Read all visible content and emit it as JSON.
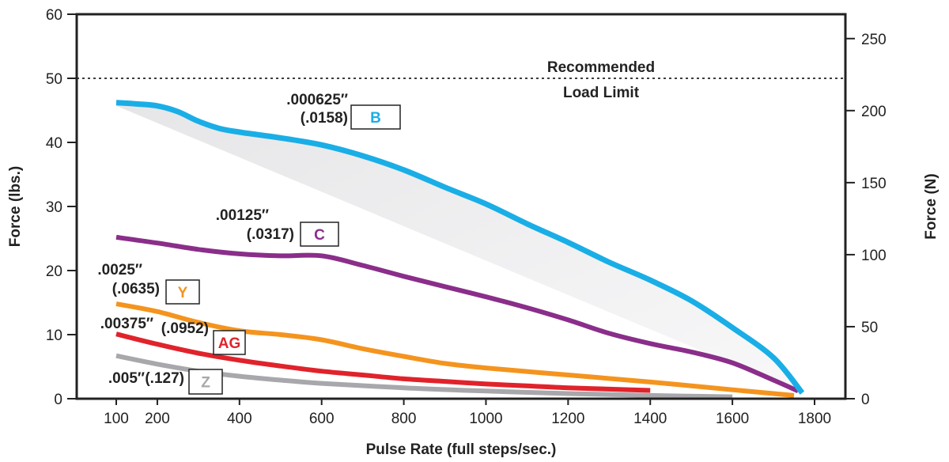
{
  "chart_data": {
    "type": "line",
    "xlabel": "Pulse Rate (full steps/sec.)",
    "ylabel": "Force (lbs.)",
    "y2label": "Force (N)",
    "xlim": [
      0,
      1850
    ],
    "ylim": [
      0,
      60
    ],
    "y2lim": [
      0,
      266.9
    ],
    "xticks": [
      100,
      200,
      400,
      600,
      800,
      1000,
      1200,
      1400,
      1600,
      1800
    ],
    "yticks": [
      0,
      10,
      20,
      30,
      40,
      50,
      60
    ],
    "y2ticks": [
      0,
      50,
      100,
      150,
      200,
      250
    ],
    "grid": false,
    "reference_line": {
      "y": 50,
      "label_line1": "Recommended",
      "label_line2": "Load Limit"
    },
    "series": [
      {
        "key": "B",
        "color": "#1aaee6",
        "label_in": ".000625″",
        "label_mm": "(.0158)",
        "x": [
          100,
          150,
          200,
          250,
          300,
          350,
          400,
          500,
          600,
          700,
          800,
          900,
          1000,
          1100,
          1200,
          1300,
          1400,
          1500,
          1600,
          1700,
          1770
        ],
        "y": [
          46.2,
          46.0,
          45.7,
          44.8,
          43.3,
          42.2,
          41.6,
          40.7,
          39.6,
          37.9,
          35.7,
          33.0,
          30.4,
          27.3,
          24.4,
          21.3,
          18.5,
          15.3,
          11.1,
          6.4,
          0.9
        ]
      },
      {
        "key": "C",
        "color": "#8a2e8a",
        "label_in": ".00125″",
        "label_mm": "(.0317)",
        "x": [
          100,
          200,
          300,
          400,
          500,
          600,
          700,
          800,
          900,
          1000,
          1100,
          1200,
          1300,
          1400,
          1500,
          1600,
          1700,
          1760
        ],
        "y": [
          25.2,
          24.3,
          23.3,
          22.6,
          22.3,
          22.3,
          20.8,
          19.1,
          17.5,
          15.9,
          14.2,
          12.3,
          10.2,
          8.6,
          7.3,
          5.6,
          2.9,
          1.2
        ]
      },
      {
        "key": "Y",
        "color": "#f4941e",
        "label_in": ".0025″",
        "label_mm": "(.0635)",
        "x": [
          100,
          200,
          300,
          400,
          500,
          600,
          700,
          800,
          900,
          1000,
          1200,
          1400,
          1600,
          1750
        ],
        "y": [
          14.8,
          13.6,
          11.9,
          10.6,
          10.0,
          9.2,
          7.8,
          6.6,
          5.5,
          4.8,
          3.7,
          2.6,
          1.4,
          0.5
        ]
      },
      {
        "key": "AG",
        "color": "#e0232b",
        "label_in": ".00375″",
        "label_mm": "(.0952)",
        "x": [
          100,
          200,
          300,
          400,
          500,
          600,
          700,
          800,
          900,
          1000,
          1100,
          1200,
          1300,
          1400
        ],
        "y": [
          10.1,
          8.5,
          7.1,
          6.0,
          5.1,
          4.3,
          3.7,
          3.1,
          2.7,
          2.3,
          2.0,
          1.7,
          1.5,
          1.3
        ]
      },
      {
        "key": "Z",
        "color": "#a8a8ac",
        "label_in": ".005″",
        "label_mm": "(.127)",
        "x": [
          100,
          200,
          300,
          400,
          500,
          600,
          800,
          1000,
          1200,
          1400,
          1600
        ],
        "y": [
          6.7,
          5.4,
          4.3,
          3.5,
          2.9,
          2.4,
          1.7,
          1.2,
          0.8,
          0.5,
          0.3
        ]
      }
    ]
  }
}
